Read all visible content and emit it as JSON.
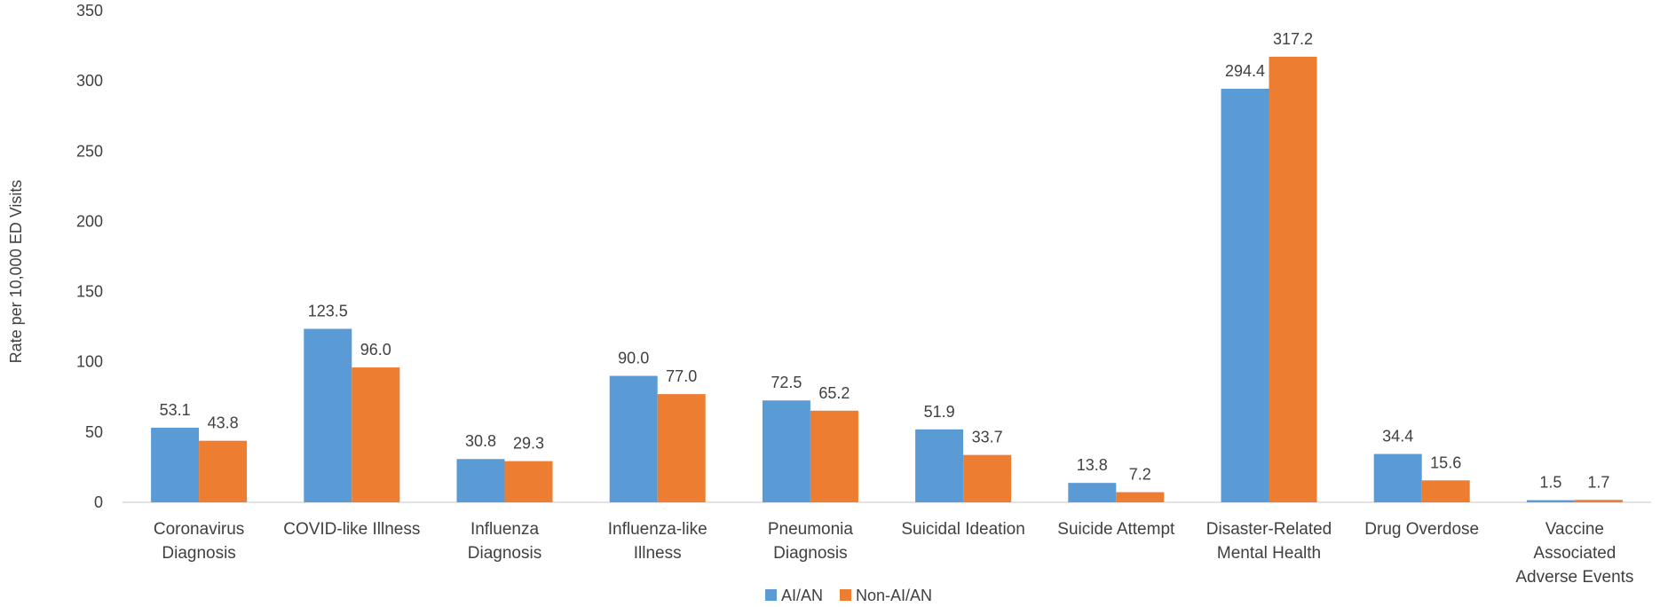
{
  "chart_data": {
    "type": "bar",
    "ylabel": "Rate per 10,000 ED Visits",
    "ylim": [
      0,
      350
    ],
    "yticks": [
      "0",
      "50",
      "100",
      "150",
      "200",
      "250",
      "300",
      "350"
    ],
    "grid": false,
    "legend_position": "bottom",
    "categories": [
      [
        "Coronavirus",
        "Diagnosis"
      ],
      [
        "COVID-like Illness"
      ],
      [
        "Influenza",
        "Diagnosis"
      ],
      [
        "Influenza-like",
        "Illness"
      ],
      [
        "Pneumonia",
        "Diagnosis"
      ],
      [
        "Suicidal Ideation"
      ],
      [
        "Suicide Attempt"
      ],
      [
        "Disaster-Related",
        "Mental Health"
      ],
      [
        "Drug Overdose"
      ],
      [
        "Vaccine",
        "Associated",
        "Adverse Events"
      ]
    ],
    "series": [
      {
        "name": "AI/AN",
        "color": "#5B9BD5",
        "values": [
          53.1,
          123.5,
          30.8,
          90.0,
          72.5,
          51.9,
          13.8,
          294.4,
          34.4,
          1.5
        ],
        "labels": [
          "53.1",
          "123.5",
          "30.8",
          "90.0",
          "72.5",
          "51.9",
          "13.8",
          "294.4",
          "34.4",
          "1.5"
        ]
      },
      {
        "name": "Non-AI/AN",
        "color": "#ED7D31",
        "values": [
          43.8,
          96.0,
          29.3,
          77.0,
          65.2,
          33.7,
          7.2,
          317.2,
          15.6,
          1.7
        ],
        "labels": [
          "43.8",
          "96.0",
          "29.3",
          "77.0",
          "65.2",
          "33.7",
          "7.2",
          "317.2",
          "15.6",
          "1.7"
        ]
      }
    ]
  }
}
